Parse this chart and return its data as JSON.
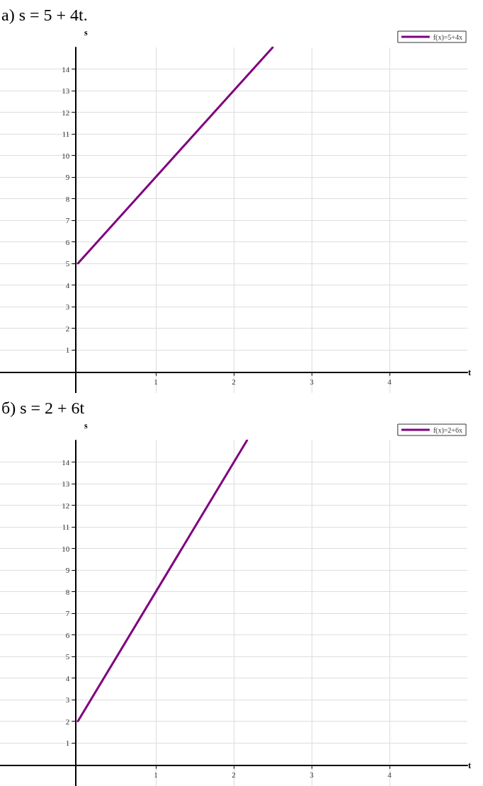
{
  "chart_data": [
    {
      "type": "line",
      "title": "а) s = 5 + 4t.",
      "xlabel": "t",
      "ylabel": "s",
      "x": [
        0,
        2.5
      ],
      "xlim": [
        -1,
        5
      ],
      "ylim": [
        -1,
        15
      ],
      "xticks": [
        1,
        2,
        3,
        4
      ],
      "yticks": [
        1,
        2,
        3,
        4,
        5,
        6,
        7,
        8,
        9,
        10,
        11,
        12,
        13,
        14
      ],
      "grid": true,
      "legend": "top right",
      "marker": "none",
      "series": [
        {
          "name": "f(x)=5+4x",
          "color": "#800080",
          "values": [
            5,
            15
          ]
        }
      ]
    },
    {
      "type": "line",
      "title": "б) s = 2 + 6t",
      "xlabel": "t",
      "ylabel": "s",
      "x": [
        0,
        2.17
      ],
      "xlim": [
        -1,
        5
      ],
      "ylim": [
        -1,
        15
      ],
      "xticks": [
        1,
        2,
        3,
        4
      ],
      "yticks": [
        1,
        2,
        3,
        4,
        5,
        6,
        7,
        8,
        9,
        10,
        11,
        12,
        13,
        14
      ],
      "grid": true,
      "legend": "top right",
      "marker": "none",
      "series": [
        {
          "name": "f(x)=2+6x",
          "color": "#800080",
          "values": [
            2,
            15
          ]
        }
      ]
    }
  ]
}
